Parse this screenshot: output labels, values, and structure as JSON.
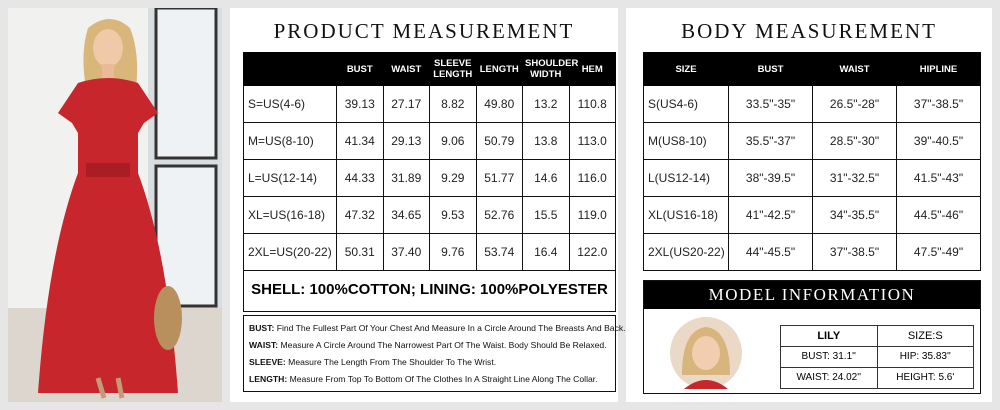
{
  "product": {
    "title": "PRODUCT MEASUREMENT",
    "table": {
      "header": [
        "",
        "BUST",
        "WAIST",
        "SLEEVE LENGTH",
        "LENGTH",
        "SHOULDER WIDTH",
        "HEM"
      ],
      "rows": [
        [
          "S=US(4-6)",
          "39.13",
          "27.17",
          "8.82",
          "49.80",
          "13.2",
          "110.8"
        ],
        [
          "M=US(8-10)",
          "41.34",
          "29.13",
          "9.06",
          "50.79",
          "13.8",
          "113.0"
        ],
        [
          "L=US(12-14)",
          "44.33",
          "31.89",
          "9.29",
          "51.77",
          "14.6",
          "116.0"
        ],
        [
          "XL=US(16-18)",
          "47.32",
          "34.65",
          "9.53",
          "52.76",
          "15.5",
          "119.0"
        ],
        [
          "2XL=US(20-22)",
          "50.31",
          "37.40",
          "9.76",
          "53.74",
          "16.4",
          "122.0"
        ]
      ]
    },
    "fabric": "SHELL: 100%COTTON;  LINING: 100%POLYESTER",
    "definitions": [
      {
        "term": "BUST:",
        "text": "Find The Fullest Part Of Your Chest And Measure In a Circle Around The Breasts And Back."
      },
      {
        "term": "WAIST:",
        "text": "Measure A Circle Around The Narrowest Part Of The Waist. Body Should Be Relaxed."
      },
      {
        "term": "SLEEVE:",
        "text": "Measure The Length From The Shoulder To The Wrist."
      },
      {
        "term": "LENGTH:",
        "text": "Measure From Top To Bottom Of The Clothes In A Straight Line Along The Collar."
      }
    ]
  },
  "body": {
    "title": "BODY MEASUREMENT",
    "table": {
      "header": [
        "SIZE",
        "BUST",
        "WAIST",
        "HIPLINE"
      ],
      "rows": [
        [
          "S(US4-6)",
          "33.5\"-35\"",
          "26.5\"-28\"",
          "37\"-38.5\""
        ],
        [
          "M(US8-10)",
          "35.5\"-37\"",
          "28.5\"-30\"",
          "39\"-40.5\""
        ],
        [
          "L(US12-14)",
          "38\"-39.5\"",
          "31\"-32.5\"",
          "41.5\"-43\""
        ],
        [
          "XL(US16-18)",
          "41\"-42.5\"",
          "34\"-35.5\"",
          "44.5\"-46\""
        ],
        [
          "2XL(US20-22)",
          "44\"-45.5\"",
          "37\"-38.5\"",
          "47.5\"-49\""
        ]
      ]
    }
  },
  "model": {
    "title": "MODEL INFORMATION",
    "rows": [
      [
        "LILY",
        "SIZE:S"
      ],
      [
        "BUST: 31.1''",
        "HIP: 35.83''"
      ],
      [
        "WAIST: 24.02''",
        "HEIGHT: 5.6'"
      ]
    ]
  }
}
